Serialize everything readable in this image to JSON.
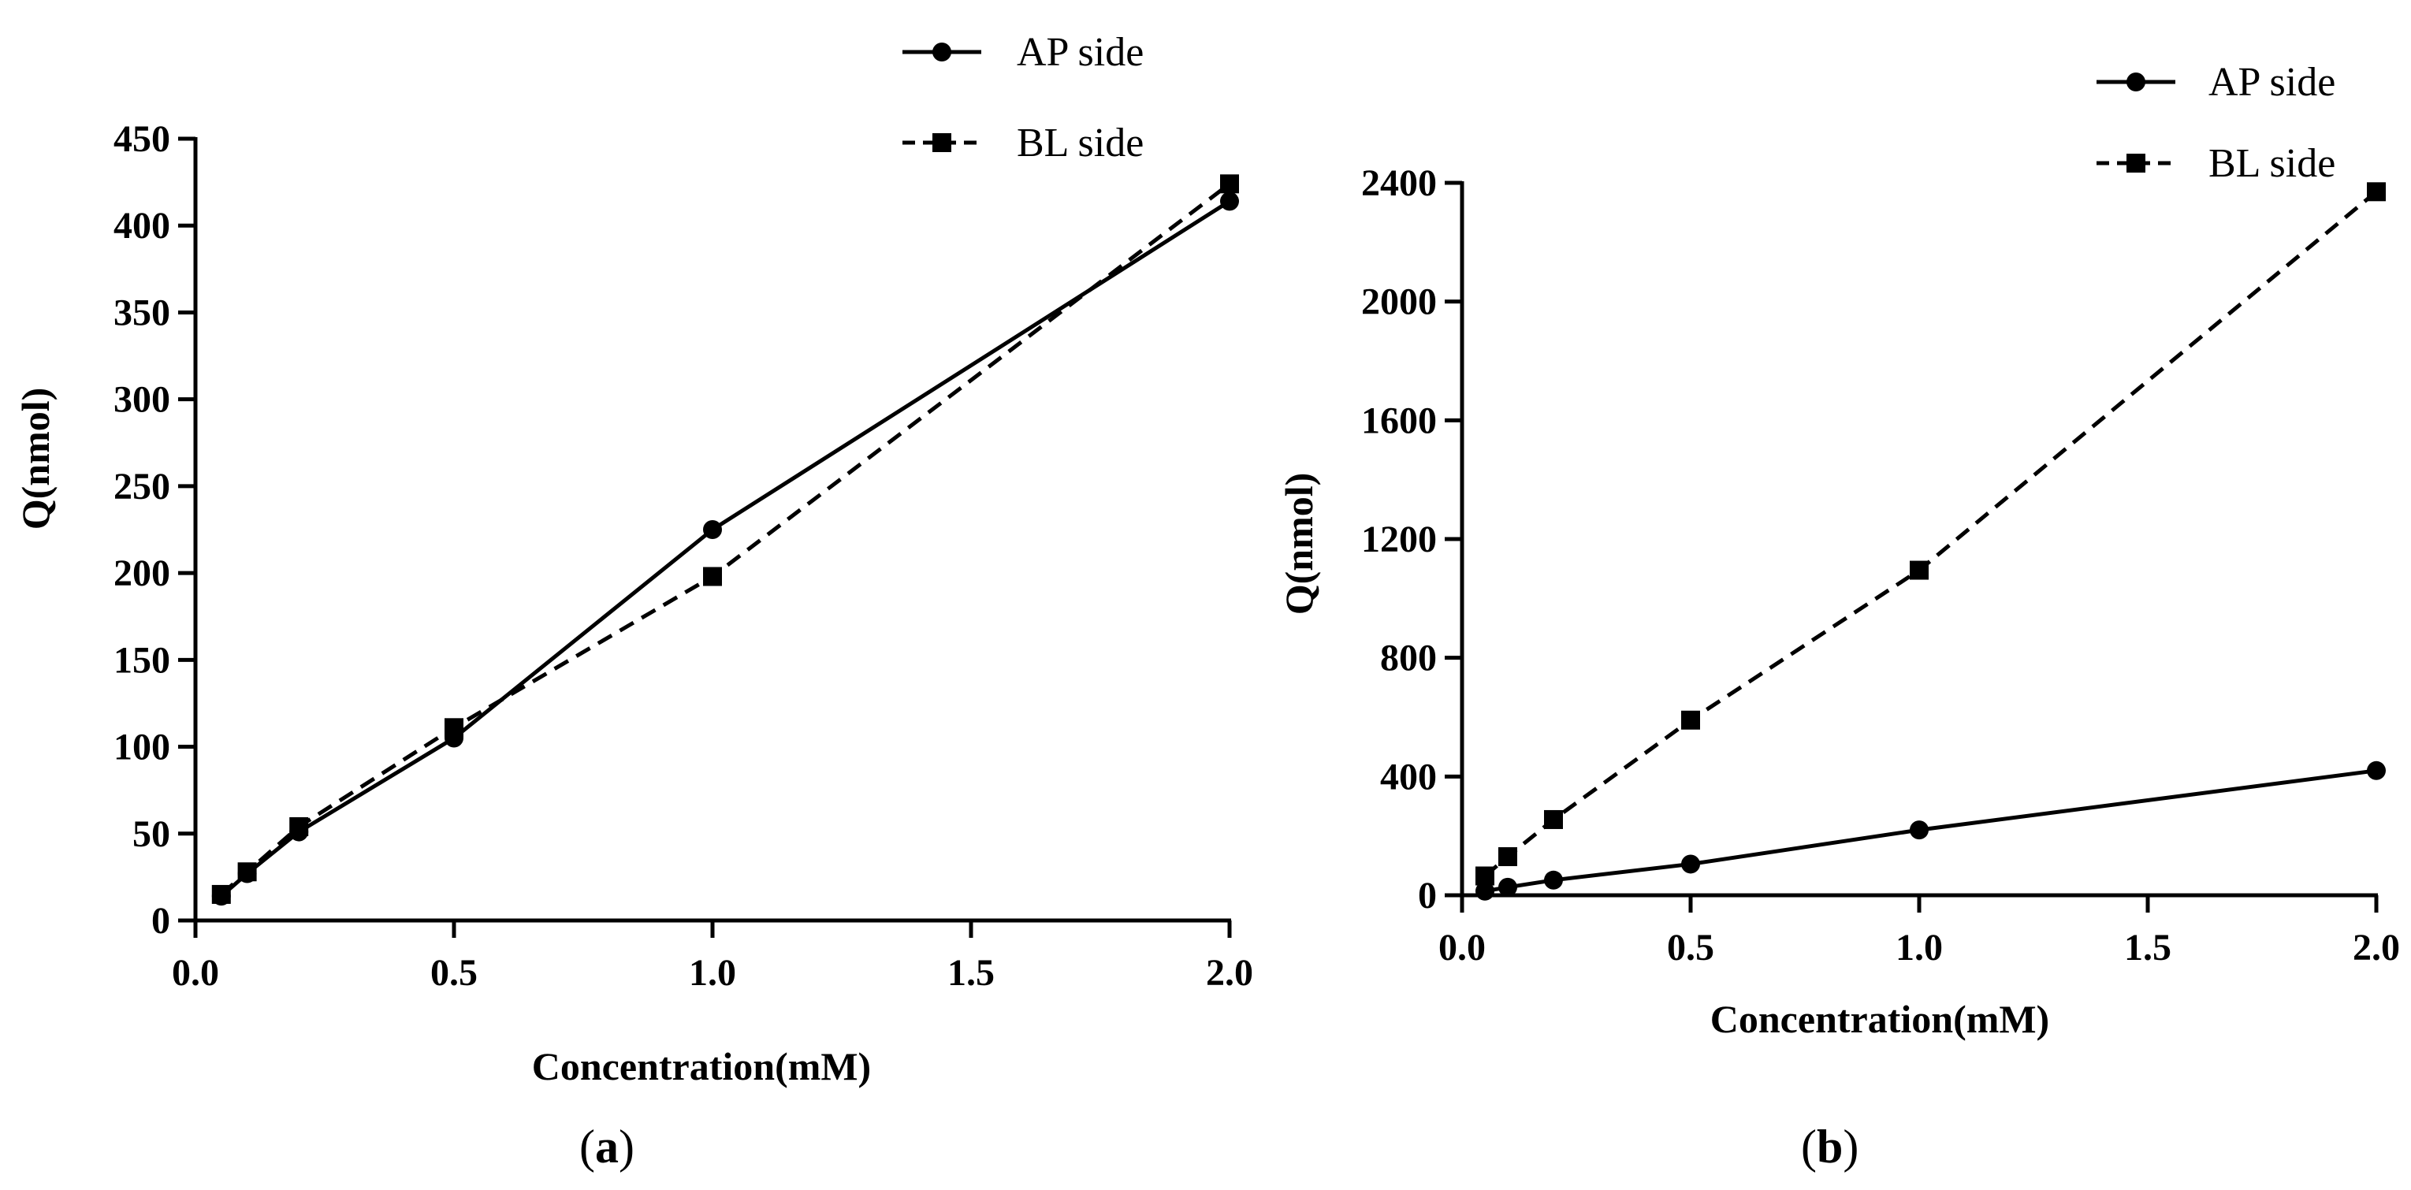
{
  "chart_data": [
    {
      "type": "line",
      "panel_label_open": "(",
      "panel_label_letter": "a",
      "panel_label_close": ")",
      "xlabel": "Concentration(mM)",
      "ylabel": "Q(nmol)",
      "xlim": [
        0,
        2
      ],
      "ylim": [
        0,
        450
      ],
      "xticks": [
        0.0,
        0.5,
        1.0,
        1.5,
        2.0
      ],
      "xtick_labels": [
        "0.0",
        "0.5",
        "1.0",
        "1.5",
        "2.0"
      ],
      "yticks": [
        0,
        50,
        100,
        150,
        200,
        250,
        300,
        350,
        400,
        450
      ],
      "ytick_labels": [
        "0",
        "50",
        "100",
        "150",
        "200",
        "250",
        "300",
        "350",
        "400",
        "450"
      ],
      "legend_position": "top-right",
      "series": [
        {
          "name": "AP side",
          "marker": "circle",
          "line": "solid",
          "x": [
            0.05,
            0.1,
            0.2,
            0.5,
            1.0,
            2.0
          ],
          "y": [
            14,
            27,
            51,
            105,
            225,
            414
          ]
        },
        {
          "name": "BL side",
          "marker": "square",
          "line": "dashed",
          "x": [
            0.05,
            0.1,
            0.2,
            0.5,
            1.0,
            2.0
          ],
          "y": [
            15,
            28,
            54,
            111,
            198,
            424
          ]
        }
      ]
    },
    {
      "type": "line",
      "panel_label_open": "(",
      "panel_label_letter": "b",
      "panel_label_close": ")",
      "xlabel": "Concentration(mM)",
      "ylabel": "Q(nmol)",
      "xlim": [
        0,
        2
      ],
      "ylim": [
        0,
        2400
      ],
      "xticks": [
        0.0,
        0.5,
        1.0,
        1.5,
        2.0
      ],
      "xtick_labels": [
        "0.0",
        "0.5",
        "1.0",
        "1.5",
        "2.0"
      ],
      "yticks": [
        0,
        400,
        800,
        1200,
        1600,
        2000,
        2400
      ],
      "ytick_labels": [
        "0",
        "400",
        "800",
        "1200",
        "1600",
        "2000",
        "2400"
      ],
      "legend_position": "top-right",
      "series": [
        {
          "name": "AP side",
          "marker": "circle",
          "line": "solid",
          "x": [
            0.05,
            0.1,
            0.2,
            0.5,
            1.0,
            2.0
          ],
          "y": [
            14,
            27,
            51,
            105,
            220,
            420
          ]
        },
        {
          "name": "BL side",
          "marker": "square",
          "line": "dashed",
          "x": [
            0.05,
            0.1,
            0.2,
            0.5,
            1.0,
            2.0
          ],
          "y": [
            65,
            130,
            255,
            590,
            1095,
            2370
          ]
        }
      ]
    }
  ]
}
